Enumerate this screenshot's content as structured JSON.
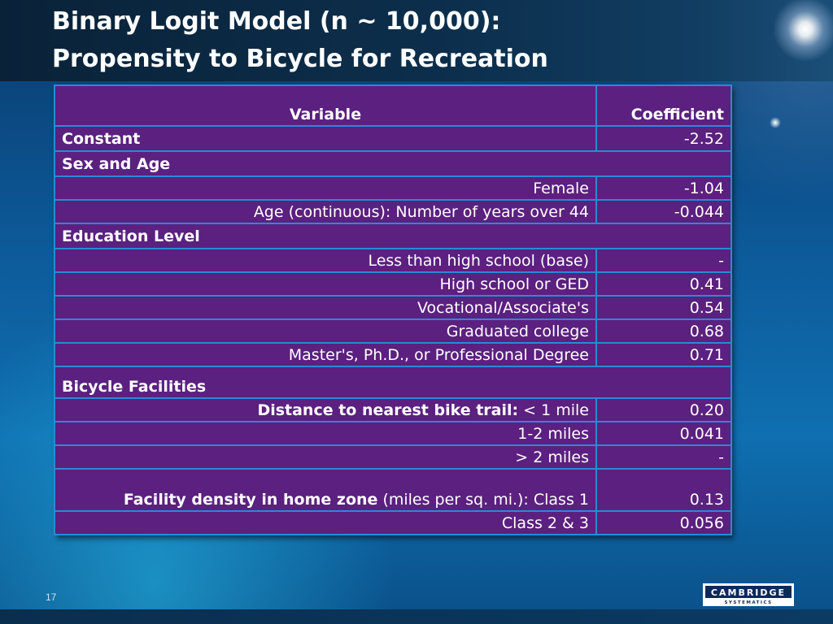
{
  "slide": {
    "title_line1": "Binary Logit Model (n ~ 10,000):",
    "title_line2": "Propensity to Bicycle for Recreation",
    "page_number": "17",
    "logo_text": "CAMBRIDGE",
    "logo_subtext": "SYSTEMATICS"
  },
  "table": {
    "header": {
      "variable": "Variable",
      "coefficient": "Coefficient"
    },
    "constant": {
      "label": "Constant",
      "value": "-2.52"
    },
    "sections": {
      "sex_age": "Sex and Age",
      "education": "Education Level",
      "bicycle": "Bicycle Facilities"
    },
    "rows": {
      "female": {
        "label": "Female",
        "value": "-1.04"
      },
      "age": {
        "label": "Age (continuous): Number of years over 44",
        "value": "-0.044"
      },
      "less_hs": {
        "label": "Less than high school (base)",
        "value": "-"
      },
      "hs": {
        "label": "High school or GED",
        "value": "0.41"
      },
      "voc": {
        "label": "Vocational/Associate's",
        "value": "0.54"
      },
      "grad": {
        "label": "Graduated college",
        "value": "0.68"
      },
      "masters": {
        "label": "Master's, Ph.D., or Professional Degree",
        "value": "0.71"
      },
      "trail1": {
        "label_bold": "Distance to nearest bike trail:",
        "label_rest": " < 1 mile",
        "value": "0.20"
      },
      "trail2": {
        "label": "1-2 miles",
        "value": "0.041"
      },
      "trail3": {
        "label": "> 2 miles",
        "value": "-"
      },
      "density1": {
        "label_bold": "Facility density in home zone",
        "label_rest": " (miles per sq. mi.): Class 1",
        "value": "0.13"
      },
      "density2": {
        "label": "Class 2 & 3",
        "value": "0.056"
      }
    }
  },
  "colors": {
    "table_fill": "#5b2080",
    "table_border": "#2a8ad6",
    "title_bar": "#0c2f4d"
  }
}
